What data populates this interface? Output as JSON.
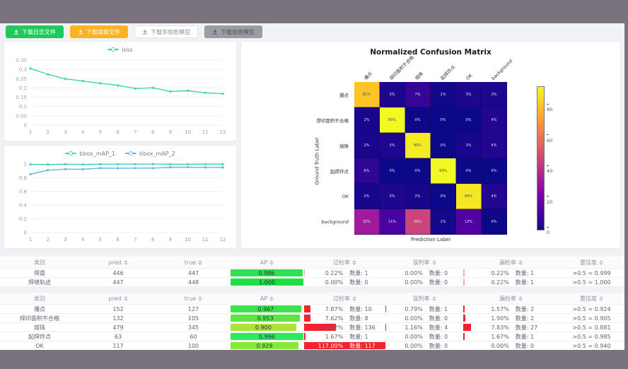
{
  "toolbar": {
    "buttons": [
      {
        "label": "下载日志文件",
        "style": "green"
      },
      {
        "label": "下载简报文件",
        "style": "orange"
      },
      {
        "label": "下载非加密模型",
        "style": "plain"
      },
      {
        "label": "下载加密模型",
        "style": "gray"
      }
    ]
  },
  "chart_data": [
    {
      "id": "loss",
      "type": "line",
      "x": [
        1,
        2,
        3,
        4,
        5,
        6,
        7,
        8,
        9,
        10,
        11,
        12
      ],
      "series": [
        {
          "name": "loss",
          "color": "#3ad6ae",
          "values": [
            0.305,
            0.273,
            0.249,
            0.237,
            0.225,
            0.214,
            0.197,
            0.201,
            0.181,
            0.185,
            0.174,
            0.169
          ]
        }
      ],
      "ylim": [
        0,
        0.35
      ],
      "yticks": [
        0,
        0.05,
        0.1,
        0.15,
        0.2,
        0.25,
        0.3,
        0.35
      ],
      "grid": true,
      "legend_position": "top"
    },
    {
      "id": "bbox_map",
      "type": "line",
      "x": [
        1,
        2,
        3,
        4,
        5,
        6,
        7,
        8,
        9,
        10,
        11,
        12
      ],
      "series": [
        {
          "name": "bbox_mAP_1",
          "color": "#3ad6ae",
          "values": [
            0.995,
            0.992,
            0.997,
            0.993,
            0.997,
            0.998,
            0.998,
            0.999,
            0.997,
            0.997,
            0.998,
            0.998
          ]
        },
        {
          "name": "bbox_mAP_2",
          "color": "#63b2f2",
          "values": [
            0.85,
            0.91,
            0.925,
            0.923,
            0.94,
            0.938,
            0.94,
            0.94,
            0.951,
            0.953,
            0.95,
            0.95
          ]
        }
      ],
      "ylim": [
        0,
        1
      ],
      "yticks": [
        0,
        0.2,
        0.4,
        0.6,
        0.8,
        1
      ],
      "grid": true,
      "legend_position": "top"
    },
    {
      "id": "confusion_matrix",
      "type": "heatmap",
      "title": "Normalized Confusion Matrix",
      "xlabel": "Prediction Label",
      "ylabel": "Ground Truth Label",
      "categories": [
        "爆点",
        "焊印面积不合格",
        "熔珠",
        "起焊炸点",
        "OK",
        "background"
      ],
      "values_percent": [
        [
          81,
          3,
          7,
          1,
          3,
          3
        ],
        [
          2,
          93,
          0,
          0,
          0,
          4
        ],
        [
          2,
          3,
          90,
          0,
          2,
          4
        ],
        [
          6,
          0,
          0,
          93,
          0,
          0
        ],
        [
          2,
          3,
          2,
          0,
          89,
          4
        ],
        [
          32,
          11,
          46,
          1,
          13,
          0
        ]
      ],
      "vmax": 93,
      "colorbar_ticks": [
        0,
        20,
        40,
        60,
        80
      ],
      "colormap": "plasma"
    }
  ],
  "tables": [
    {
      "count_label": "数量:",
      "headers": [
        {
          "label": "类别",
          "sortable": false
        },
        {
          "label": "pred",
          "sortable": true
        },
        {
          "label": "true",
          "sortable": true
        },
        {
          "label": "AP",
          "sortable": true
        },
        {
          "label": "过检率",
          "sortable": true
        },
        {
          "label": "误判率",
          "sortable": true
        },
        {
          "label": "漏检率",
          "sortable": true
        },
        {
          "label": "置信度",
          "sortable": true
        }
      ],
      "rows": [
        {
          "label": "焊盘",
          "pred": "446",
          "true": "447",
          "ap": "0.986",
          "ap_color": "#2fe14d",
          "over_pct": "0.22%",
          "over_count": "1",
          "mis_pct": "0.00%",
          "mis_count": "0",
          "miss_pct": "0.22%",
          "miss_count": "1",
          "conf": ">0.5 = 0.999"
        },
        {
          "label": "焊缝轨迹",
          "pred": "447",
          "true": "448",
          "ap": "1.000",
          "ap_color": "#1ddf3f",
          "over_pct": "0.00%",
          "over_count": "0",
          "mis_pct": "0.00%",
          "mis_count": "0",
          "miss_pct": "0.22%",
          "miss_count": "1",
          "conf": ">0.5 = 1.000"
        }
      ]
    },
    {
      "count_label": "数量:",
      "headers": [
        {
          "label": "类别",
          "sortable": false
        },
        {
          "label": "pred",
          "sortable": true
        },
        {
          "label": "true",
          "sortable": true
        },
        {
          "label": "AP",
          "sortable": true
        },
        {
          "label": "过检率",
          "sortable": true
        },
        {
          "label": "误判率",
          "sortable": true
        },
        {
          "label": "漏检率",
          "sortable": true
        },
        {
          "label": "置信度",
          "sortable": true
        }
      ],
      "rows": [
        {
          "label": "爆点",
          "pred": "152",
          "true": "127",
          "ap": "0.967",
          "ap_color": "#3ce24a",
          "over_pct": "7.87%",
          "over_count": "10",
          "mis_pct": "0.79%",
          "mis_count": "1",
          "miss_pct": "1.57%",
          "miss_count": "2",
          "conf": ">0.5 = 0.924"
        },
        {
          "label": "焊印面积不合格",
          "pred": "132",
          "true": "105",
          "ap": "0.953",
          "ap_color": "#5ae63f",
          "over_pct": "7.62%",
          "over_count": "8",
          "mis_pct": "0.00%",
          "mis_count": "0",
          "miss_pct": "1.90%",
          "miss_count": "2",
          "conf": ">0.5 = 0.905"
        },
        {
          "label": "熔珠",
          "pred": "479",
          "true": "345",
          "ap": "0.900",
          "ap_color": "#abe336",
          "over_pct": "39.42%",
          "over_count": "136",
          "mis_pct": "1.16%",
          "mis_count": "4",
          "miss_pct": "7.83%",
          "miss_count": "27",
          "conf": ">0.5 = 0.881"
        },
        {
          "label": "起焊炸点",
          "pred": "63",
          "true": "60",
          "ap": "0.996",
          "ap_color": "#2ae95e",
          "over_pct": "1.67%",
          "over_count": "1",
          "mis_pct": "0.00%",
          "mis_count": "0",
          "miss_pct": "1.67%",
          "miss_count": "1",
          "conf": ">0.5 = 0.985"
        },
        {
          "label": "OK",
          "pred": "117",
          "true": "100",
          "ap": "0.929",
          "ap_color": "#86e838",
          "over_pct": "117.00%",
          "over_count": "117",
          "mis_pct": "0.00%",
          "mis_count": "0",
          "miss_pct": "0.00%",
          "miss_count": "0",
          "conf": ">0.5 = 0.940"
        }
      ]
    }
  ]
}
